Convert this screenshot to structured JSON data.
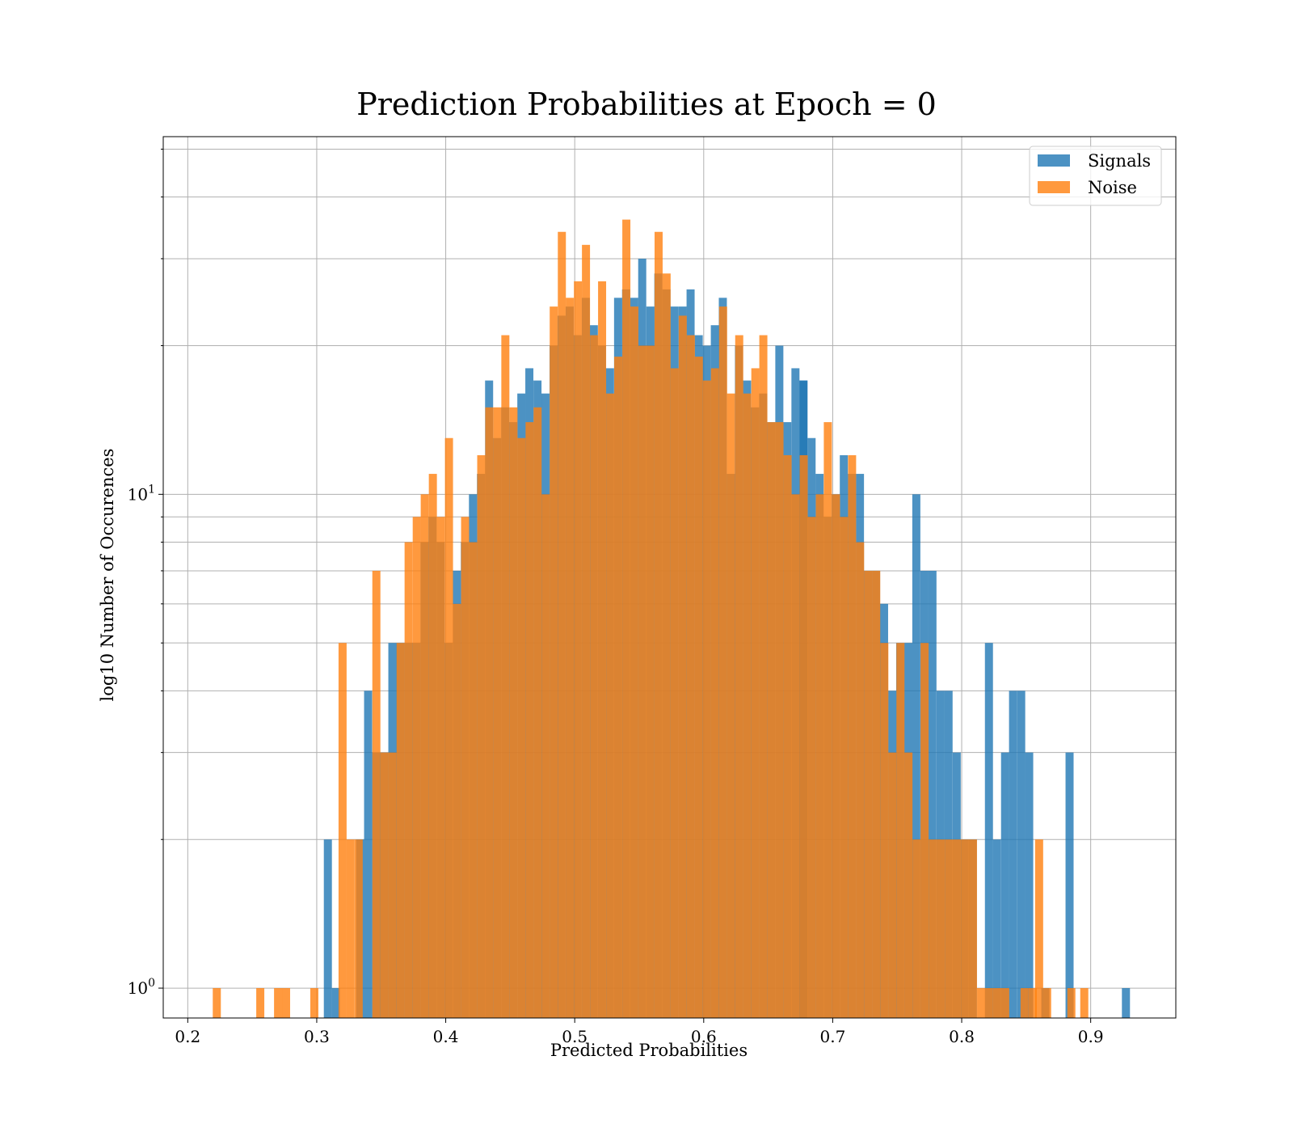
{
  "chart_data": {
    "type": "bar",
    "title": "Prediction Probabilities at Epoch = 0",
    "xlabel": "Predicted Probabilities",
    "ylabel": "log10 Number of Occurences",
    "xlim": [
      0.181,
      0.966
    ],
    "ylim": [
      0.87,
      53
    ],
    "yscale": "log",
    "xticks": [
      0.2,
      0.3,
      0.4,
      0.5,
      0.6,
      0.7,
      0.8,
      0.9
    ],
    "xtick_labels": [
      "0.2",
      "0.3",
      "0.4",
      "0.5",
      "0.6",
      "0.7",
      "0.8",
      "0.9"
    ],
    "ytick_labels": [
      {
        "value": 1,
        "base": "10",
        "exp": "0"
      },
      {
        "value": 10,
        "base": "10",
        "exp": "1"
      }
    ],
    "grid": true,
    "legend_position": "top-right",
    "series": [
      {
        "name": "Signals",
        "color": "#1f77b4",
        "opacity": 0.8,
        "bin_width": 0.00625,
        "bins": [
          [
            0.3055,
            2
          ],
          [
            0.3117,
            1
          ],
          [
            0.3305,
            2
          ],
          [
            0.3367,
            4
          ],
          [
            0.343,
            3
          ],
          [
            0.3492,
            3
          ],
          [
            0.3555,
            5
          ],
          [
            0.3617,
            5
          ],
          [
            0.368,
            5
          ],
          [
            0.3742,
            5
          ],
          [
            0.3805,
            8
          ],
          [
            0.3867,
            9
          ],
          [
            0.393,
            8
          ],
          [
            0.3992,
            5
          ],
          [
            0.4055,
            7
          ],
          [
            0.4117,
            8
          ],
          [
            0.418,
            10
          ],
          [
            0.4242,
            11
          ],
          [
            0.4305,
            17
          ],
          [
            0.4367,
            13
          ],
          [
            0.443,
            15
          ],
          [
            0.4492,
            14
          ],
          [
            0.4555,
            16
          ],
          [
            0.4617,
            18
          ],
          [
            0.468,
            17
          ],
          [
            0.4742,
            16
          ],
          [
            0.4805,
            20
          ],
          [
            0.4867,
            23
          ],
          [
            0.493,
            24
          ],
          [
            0.4992,
            21
          ],
          [
            0.5055,
            25
          ],
          [
            0.5117,
            22
          ],
          [
            0.518,
            20
          ],
          [
            0.5242,
            18
          ],
          [
            0.5305,
            25
          ],
          [
            0.5367,
            26
          ],
          [
            0.543,
            25
          ],
          [
            0.5492,
            30
          ],
          [
            0.5555,
            24
          ],
          [
            0.5617,
            28
          ],
          [
            0.568,
            26
          ],
          [
            0.5742,
            24
          ],
          [
            0.5805,
            24
          ],
          [
            0.5867,
            26
          ],
          [
            0.593,
            21
          ],
          [
            0.5992,
            20
          ],
          [
            0.6055,
            22
          ],
          [
            0.6117,
            25
          ],
          [
            0.618,
            11
          ],
          [
            0.6242,
            20
          ],
          [
            0.6305,
            17
          ],
          [
            0.6367,
            15
          ],
          [
            0.643,
            16
          ],
          [
            0.6492,
            14
          ],
          [
            0.6555,
            20
          ],
          [
            0.6617,
            14
          ],
          [
            0.668,
            18
          ],
          [
            0.6742,
            17
          ],
          [
            0.6742,
            17
          ],
          [
            0.6805,
            13
          ],
          [
            0.6867,
            11
          ],
          [
            0.693,
            9
          ],
          [
            0.6992,
            10
          ],
          [
            0.7055,
            12
          ],
          [
            0.7117,
            11
          ],
          [
            0.718,
            11
          ],
          [
            0.7242,
            7
          ],
          [
            0.7305,
            7
          ],
          [
            0.7367,
            6
          ],
          [
            0.743,
            4
          ],
          [
            0.7492,
            5
          ],
          [
            0.7555,
            5
          ],
          [
            0.7617,
            10
          ],
          [
            0.768,
            7
          ],
          [
            0.7742,
            7
          ],
          [
            0.7805,
            4
          ],
          [
            0.7867,
            4
          ],
          [
            0.793,
            3
          ],
          [
            0.7992,
            2
          ],
          [
            0.8055,
            2
          ],
          [
            0.818,
            5
          ],
          [
            0.8242,
            2
          ],
          [
            0.8305,
            3
          ],
          [
            0.8367,
            4
          ],
          [
            0.843,
            4
          ],
          [
            0.8492,
            3
          ],
          [
            0.8617,
            1
          ],
          [
            0.8805,
            3
          ],
          [
            0.9242,
            1
          ]
        ]
      },
      {
        "name": "Noise",
        "color": "#ff7f0e",
        "opacity": 0.8,
        "bin_width": 0.00625,
        "bins": [
          [
            0.2194,
            1
          ],
          [
            0.2531,
            1
          ],
          [
            0.2669,
            1
          ],
          [
            0.2731,
            1
          ],
          [
            0.295,
            1
          ],
          [
            0.3169,
            5
          ],
          [
            0.3231,
            2
          ],
          [
            0.3294,
            2
          ],
          [
            0.3431,
            7
          ],
          [
            0.3494,
            3
          ],
          [
            0.3556,
            3
          ],
          [
            0.3619,
            5
          ],
          [
            0.3681,
            8
          ],
          [
            0.3744,
            9
          ],
          [
            0.3806,
            10
          ],
          [
            0.3869,
            11
          ],
          [
            0.3931,
            9
          ],
          [
            0.3994,
            13
          ],
          [
            0.4056,
            6
          ],
          [
            0.4119,
            9
          ],
          [
            0.4181,
            8
          ],
          [
            0.4244,
            12
          ],
          [
            0.4306,
            15
          ],
          [
            0.4369,
            15
          ],
          [
            0.4431,
            21
          ],
          [
            0.4494,
            15
          ],
          [
            0.4556,
            13
          ],
          [
            0.4619,
            14
          ],
          [
            0.4681,
            15
          ],
          [
            0.4744,
            10
          ],
          [
            0.4806,
            24
          ],
          [
            0.4869,
            34
          ],
          [
            0.4931,
            25
          ],
          [
            0.4994,
            27
          ],
          [
            0.5056,
            32
          ],
          [
            0.5119,
            21
          ],
          [
            0.5181,
            27
          ],
          [
            0.5244,
            16
          ],
          [
            0.5306,
            19
          ],
          [
            0.5369,
            36
          ],
          [
            0.5431,
            24
          ],
          [
            0.5494,
            20
          ],
          [
            0.5556,
            20
          ],
          [
            0.5619,
            34
          ],
          [
            0.5681,
            28
          ],
          [
            0.5744,
            18
          ],
          [
            0.5806,
            23
          ],
          [
            0.5869,
            21
          ],
          [
            0.5931,
            19
          ],
          [
            0.5994,
            17
          ],
          [
            0.6056,
            18
          ],
          [
            0.6119,
            24
          ],
          [
            0.6181,
            16
          ],
          [
            0.6244,
            21
          ],
          [
            0.6306,
            16
          ],
          [
            0.6369,
            18
          ],
          [
            0.6431,
            21
          ],
          [
            0.6494,
            14
          ],
          [
            0.6556,
            14
          ],
          [
            0.6619,
            12
          ],
          [
            0.6681,
            10
          ],
          [
            0.6744,
            12
          ],
          [
            0.6806,
            9
          ],
          [
            0.6869,
            10
          ],
          [
            0.6931,
            14
          ],
          [
            0.6994,
            10
          ],
          [
            0.7056,
            9
          ],
          [
            0.7119,
            12
          ],
          [
            0.7181,
            8
          ],
          [
            0.7244,
            7
          ],
          [
            0.7306,
            7
          ],
          [
            0.7369,
            5
          ],
          [
            0.7431,
            3
          ],
          [
            0.7494,
            5
          ],
          [
            0.7556,
            3
          ],
          [
            0.7619,
            2
          ],
          [
            0.7681,
            5
          ],
          [
            0.7744,
            2
          ],
          [
            0.7806,
            2
          ],
          [
            0.7869,
            2
          ],
          [
            0.7931,
            2
          ],
          [
            0.7994,
            2
          ],
          [
            0.8056,
            2
          ],
          [
            0.8119,
            1
          ],
          [
            0.8181,
            1
          ],
          [
            0.8244,
            1
          ],
          [
            0.8306,
            1
          ],
          [
            0.8456,
            1
          ],
          [
            0.8519,
            1
          ],
          [
            0.8569,
            2
          ],
          [
            0.8631,
            1
          ],
          [
            0.8819,
            1
          ],
          [
            0.8919,
            1
          ]
        ]
      }
    ]
  }
}
